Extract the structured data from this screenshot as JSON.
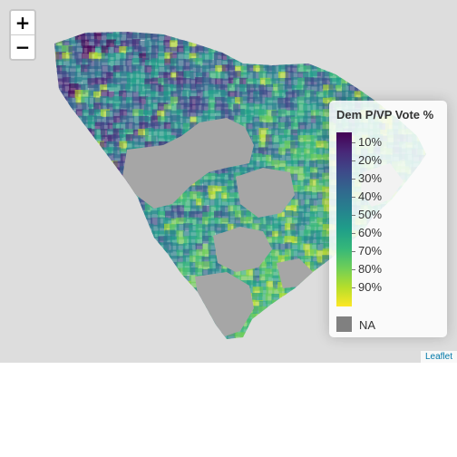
{
  "zoom": {
    "in_label": "+",
    "out_label": "−"
  },
  "legend": {
    "title": "Dem P/VP Vote %",
    "labels": [
      "10%",
      "20%",
      "30%",
      "40%",
      "50%",
      "60%",
      "70%",
      "80%",
      "90%"
    ],
    "na_label": "NA",
    "colors": [
      "#440154",
      "#482878",
      "#3e4989",
      "#31688e",
      "#26828e",
      "#1f9e89",
      "#35b779",
      "#6ece58",
      "#b5de2b",
      "#fde725"
    ],
    "na_color": "#808080"
  },
  "attribution": {
    "link_label": "Leaflet"
  },
  "colors": {
    "map_background": "#dddddd",
    "link": "#0078A8"
  }
}
